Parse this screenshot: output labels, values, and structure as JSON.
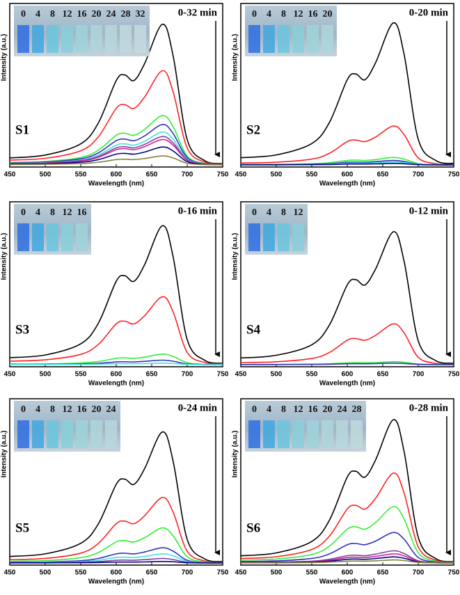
{
  "chart_data": [
    {
      "type": "line",
      "panel_label": "S1",
      "annotation": "0-32 min",
      "inset_labels": [
        "0",
        "4",
        "8",
        "12",
        "16",
        "20",
        "24",
        "28",
        "32"
      ],
      "xlabel": "Wavelength (nm)",
      "ylabel": "Intensity (a.u.)",
      "xlim": [
        450,
        750
      ],
      "xticks": [
        450,
        500,
        550,
        600,
        650,
        700,
        750
      ],
      "ylim": [
        0,
        100
      ],
      "x": [
        450,
        500,
        550,
        575,
        600,
        612,
        625,
        640,
        665,
        680,
        700,
        725,
        750
      ],
      "series": [
        {
          "color": "#000000",
          "values": [
            4.7,
            6.6,
            14.1,
            28.2,
            56.4,
            60.2,
            56.4,
            67.7,
            94,
            73.3,
            16.9,
            2.8,
            0.9
          ]
        },
        {
          "color": "#ff2020",
          "values": [
            3.2,
            4.4,
            9.5,
            18.9,
            37.8,
            40.3,
            37.8,
            45.4,
            63,
            49.1,
            11.3,
            1.9,
            0.6
          ]
        },
        {
          "color": "#33ee33",
          "values": [
            1.7,
            2.3,
            5,
            9.9,
            19.8,
            21.1,
            19.8,
            23.8,
            33,
            25.7,
            5.9,
            1,
            0.3
          ]
        },
        {
          "color": "#3030c0",
          "values": [
            1.4,
            1.9,
            4.1,
            8.1,
            16.2,
            17.3,
            16.2,
            19.4,
            27,
            21.1,
            4.9,
            0.8,
            0.3
          ]
        },
        {
          "color": "#40e0e0",
          "values": [
            1.1,
            1.5,
            3.3,
            6.6,
            13.2,
            14.1,
            13.2,
            15.8,
            22,
            17.2,
            4,
            0.7,
            0.2
          ]
        },
        {
          "color": "#8040a0",
          "values": [
            1,
            1.3,
            2.9,
            5.7,
            11.4,
            12.2,
            11.4,
            13.7,
            19,
            14.8,
            3.4,
            0.6,
            0.2
          ]
        },
        {
          "color": "#d02090",
          "values": [
            0.9,
            1.2,
            2.6,
            5.1,
            10.2,
            10.9,
            10.2,
            12.2,
            17,
            13.3,
            3.1,
            0.5,
            0.2
          ]
        },
        {
          "color": "#000080",
          "values": [
            0.6,
            0.8,
            1.8,
            3.6,
            7.2,
            7.7,
            7.2,
            8.6,
            12,
            9.4,
            2.2,
            0.4,
            0.1
          ]
        },
        {
          "color": "#808040",
          "values": [
            0.3,
            0.4,
            0.9,
            1.8,
            3.6,
            3.8,
            3.6,
            4.3,
            6,
            4.7,
            1.1,
            0.2,
            0.1
          ]
        }
      ]
    },
    {
      "type": "line",
      "panel_label": "S2",
      "annotation": "0-20 min",
      "inset_labels": [
        "0",
        "4",
        "8",
        "12",
        "16",
        "20"
      ],
      "xlabel": "Wavelength (nm)",
      "ylabel": "Intensity (a.u.)",
      "xlim": [
        450,
        750
      ],
      "xticks": [
        450,
        500,
        550,
        600,
        650,
        700,
        750
      ],
      "ylim": [
        0,
        100
      ],
      "x": [
        450,
        500,
        550,
        575,
        600,
        612,
        625,
        640,
        665,
        680,
        700,
        725,
        750
      ],
      "series": [
        {
          "color": "#000000",
          "values": [
            4.8,
            6.7,
            14.3,
            28.5,
            57,
            60.8,
            57,
            68.4,
            95,
            74.1,
            17.1,
            2.9,
            1
          ]
        },
        {
          "color": "#ff2020",
          "values": [
            1.3,
            1.8,
            3.9,
            7.8,
            15.6,
            16.6,
            15.6,
            18.7,
            26,
            20.3,
            4.7,
            0.8,
            0.3
          ]
        },
        {
          "color": "#33ee33",
          "values": [
            0.3,
            0.4,
            0.8,
            1.5,
            3,
            3.2,
            3,
            3.6,
            5,
            3.9,
            0.9,
            0.2,
            0.1
          ]
        },
        {
          "color": "#3030c0",
          "values": [
            0.2,
            0.2,
            0.5,
            0.9,
            1.8,
            1.9,
            1.8,
            2.2,
            3,
            2.3,
            0.5,
            0.1,
            0
          ]
        },
        {
          "color": "#40e0e0",
          "values": [
            0.1,
            0.1,
            0.3,
            0.6,
            1.2,
            1.3,
            1.2,
            1.4,
            2,
            1.6,
            0.4,
            0.1,
            0
          ]
        },
        {
          "color": "#000080",
          "values": [
            0.1,
            0.1,
            0.2,
            0.3,
            0.6,
            0.6,
            0.6,
            0.7,
            1,
            0.8,
            0.2,
            0,
            0
          ]
        }
      ]
    },
    {
      "type": "line",
      "panel_label": "S3",
      "annotation": "0-16 min",
      "inset_labels": [
        "0",
        "4",
        "8",
        "12",
        "16"
      ],
      "xlabel": "Wavelength (nm)",
      "ylabel": "Intensity (a.u.)",
      "xlim": [
        450,
        750
      ],
      "xticks": [
        450,
        500,
        550,
        600,
        650,
        700,
        750
      ],
      "ylim": [
        0,
        100
      ],
      "x": [
        450,
        500,
        550,
        575,
        600,
        612,
        625,
        640,
        665,
        680,
        700,
        725,
        750
      ],
      "series": [
        {
          "color": "#000000",
          "values": [
            4.6,
            6.4,
            13.8,
            27.6,
            55.2,
            58.9,
            55.2,
            66.2,
            92,
            71.8,
            16.6,
            2.8,
            0.9
          ]
        },
        {
          "color": "#ff2020",
          "values": [
            2.3,
            3.2,
            6.8,
            13.5,
            27,
            28.8,
            27,
            32.4,
            45,
            35.1,
            8.1,
            1.4,
            0.5
          ]
        },
        {
          "color": "#33ee33",
          "values": [
            0.4,
            0.5,
            1.1,
            2.1,
            4.2,
            4.5,
            4.2,
            5,
            7,
            5.5,
            1.3,
            0.2,
            0.1
          ]
        },
        {
          "color": "#3030c0",
          "values": [
            0.2,
            0.2,
            0.5,
            0.9,
            1.8,
            1.9,
            1.8,
            2.2,
            3,
            2.3,
            0.5,
            0.1,
            0
          ]
        },
        {
          "color": "#40e0e0",
          "values": [
            0.1,
            0.1,
            0.2,
            0.3,
            0.6,
            0.6,
            0.6,
            0.7,
            1,
            0.8,
            0.2,
            0,
            0
          ]
        }
      ]
    },
    {
      "type": "line",
      "panel_label": "S4",
      "annotation": "0-12 min",
      "inset_labels": [
        "0",
        "4",
        "8",
        "12"
      ],
      "xlabel": "Wavelength (nm)",
      "ylabel": "Intensity (a.u.)",
      "xlim": [
        450,
        750
      ],
      "xticks": [
        450,
        500,
        550,
        600,
        650,
        700,
        750
      ],
      "ylim": [
        0,
        100
      ],
      "x": [
        450,
        500,
        550,
        575,
        600,
        612,
        625,
        640,
        665,
        680,
        700,
        725,
        750
      ],
      "series": [
        {
          "color": "#000000",
          "values": [
            4.4,
            6.2,
            13.2,
            26.4,
            52.8,
            56.3,
            52.8,
            63.4,
            88,
            68.6,
            15.8,
            2.6,
            0.9
          ]
        },
        {
          "color": "#ff2020",
          "values": [
            1.4,
            1.9,
            4.1,
            8.1,
            16.2,
            17.3,
            16.2,
            19.4,
            27,
            21.1,
            4.9,
            0.8,
            0.3
          ]
        },
        {
          "color": "#33ee33",
          "values": [
            0.1,
            0.1,
            0.3,
            0.6,
            1.2,
            1.3,
            1.2,
            1.4,
            2,
            1.6,
            0.4,
            0.1,
            0
          ]
        },
        {
          "color": "#3030c0",
          "values": [
            0.1,
            0.1,
            0.2,
            0.3,
            0.6,
            0.6,
            0.6,
            0.7,
            1,
            0.8,
            0.2,
            0,
            0
          ]
        }
      ]
    },
    {
      "type": "line",
      "panel_label": "S5",
      "annotation": "0-24 min",
      "inset_labels": [
        "0",
        "4",
        "8",
        "12",
        "16",
        "20",
        "24"
      ],
      "xlabel": "Wavelength (nm)",
      "ylabel": "Intensity (a.u.)",
      "xlim": [
        450,
        750
      ],
      "xticks": [
        450,
        500,
        550,
        600,
        650,
        700,
        750
      ],
      "ylim": [
        0,
        100
      ],
      "x": [
        450,
        500,
        550,
        575,
        600,
        612,
        625,
        640,
        665,
        680,
        700,
        725,
        750
      ],
      "series": [
        {
          "color": "#000000",
          "values": [
            4.3,
            6,
            12.9,
            25.8,
            51.6,
            55,
            51.6,
            61.9,
            86,
            67.1,
            15.5,
            2.6,
            0.9
          ]
        },
        {
          "color": "#ff2020",
          "values": [
            2.2,
            3,
            6.5,
            12.9,
            25.8,
            27.5,
            25.8,
            31,
            43,
            33.5,
            7.7,
            1.3,
            0.4
          ]
        },
        {
          "color": "#33ee33",
          "values": [
            1.2,
            1.6,
            3.5,
            6.9,
            13.8,
            14.7,
            13.8,
            16.6,
            23,
            17.9,
            4.1,
            0.7,
            0.2
          ]
        },
        {
          "color": "#3030c0",
          "values": [
            0.5,
            0.7,
            1.5,
            3,
            6,
            6.4,
            6,
            7.2,
            10,
            7.8,
            1.8,
            0.3,
            0.1
          ]
        },
        {
          "color": "#40e0e0",
          "values": [
            0.3,
            0.4,
            0.9,
            1.8,
            3.6,
            3.8,
            3.6,
            4.3,
            6,
            4.7,
            1.1,
            0.2,
            0.1
          ]
        },
        {
          "color": "#8040a0",
          "values": [
            0.2,
            0.2,
            0.5,
            0.9,
            1.8,
            1.9,
            1.8,
            2.2,
            3,
            2.3,
            0.5,
            0.1,
            0
          ]
        },
        {
          "color": "#000080",
          "values": [
            0.1,
            0.1,
            0.2,
            0.3,
            0.6,
            0.6,
            0.6,
            0.7,
            1,
            0.8,
            0.2,
            0,
            0
          ]
        }
      ]
    },
    {
      "type": "line",
      "panel_label": "S6",
      "annotation": "0-28 min",
      "inset_labels": [
        "0",
        "4",
        "8",
        "12",
        "16",
        "20",
        "24",
        "28"
      ],
      "xlabel": "Wavelength (nm)",
      "ylabel": "Intensity (a.u.)",
      "xlim": [
        450,
        750
      ],
      "xticks": [
        450,
        500,
        550,
        600,
        650,
        700,
        750
      ],
      "ylim": [
        0,
        100
      ],
      "x": [
        450,
        500,
        550,
        575,
        600,
        612,
        625,
        640,
        665,
        680,
        700,
        725,
        750
      ],
      "series": [
        {
          "color": "#000000",
          "values": [
            4.7,
            6.6,
            14.1,
            28.2,
            56.4,
            60.2,
            56.4,
            67.7,
            94,
            73.3,
            16.9,
            2.8,
            0.9
          ]
        },
        {
          "color": "#ff2020",
          "values": [
            3,
            4.1,
            8.9,
            17.7,
            35.4,
            37.8,
            35.4,
            42.5,
            59,
            46,
            10.6,
            1.8,
            0.6
          ]
        },
        {
          "color": "#33ee33",
          "values": [
            1.9,
            2.6,
            5.6,
            11.1,
            22.2,
            23.7,
            22.2,
            26.6,
            37,
            28.9,
            6.7,
            1.1,
            0.4
          ]
        },
        {
          "color": "#3030c0",
          "values": [
            1,
            1.4,
            3,
            6,
            12,
            12.8,
            12,
            14.4,
            20,
            15.6,
            3.6,
            0.6,
            0.2
          ]
        },
        {
          "color": "#8040a0",
          "values": [
            0.4,
            0.6,
            1.2,
            2.4,
            4.8,
            5.1,
            4.8,
            5.8,
            8,
            6.2,
            1.4,
            0.2,
            0.1
          ]
        },
        {
          "color": "#d02090",
          "values": [
            0.3,
            0.4,
            0.9,
            1.8,
            3.6,
            3.8,
            3.6,
            4.3,
            6,
            4.7,
            1.1,
            0.2,
            0.1
          ]
        },
        {
          "color": "#000080",
          "values": [
            0.2,
            0.3,
            0.6,
            1.2,
            2.4,
            2.6,
            2.4,
            2.9,
            4,
            3.1,
            0.7,
            0.1,
            0
          ]
        },
        {
          "color": "#808040",
          "values": [
            0.1,
            0.1,
            0.3,
            0.6,
            1.2,
            1.3,
            1.2,
            1.4,
            2,
            1.6,
            0.4,
            0.1,
            0
          ]
        }
      ]
    }
  ]
}
